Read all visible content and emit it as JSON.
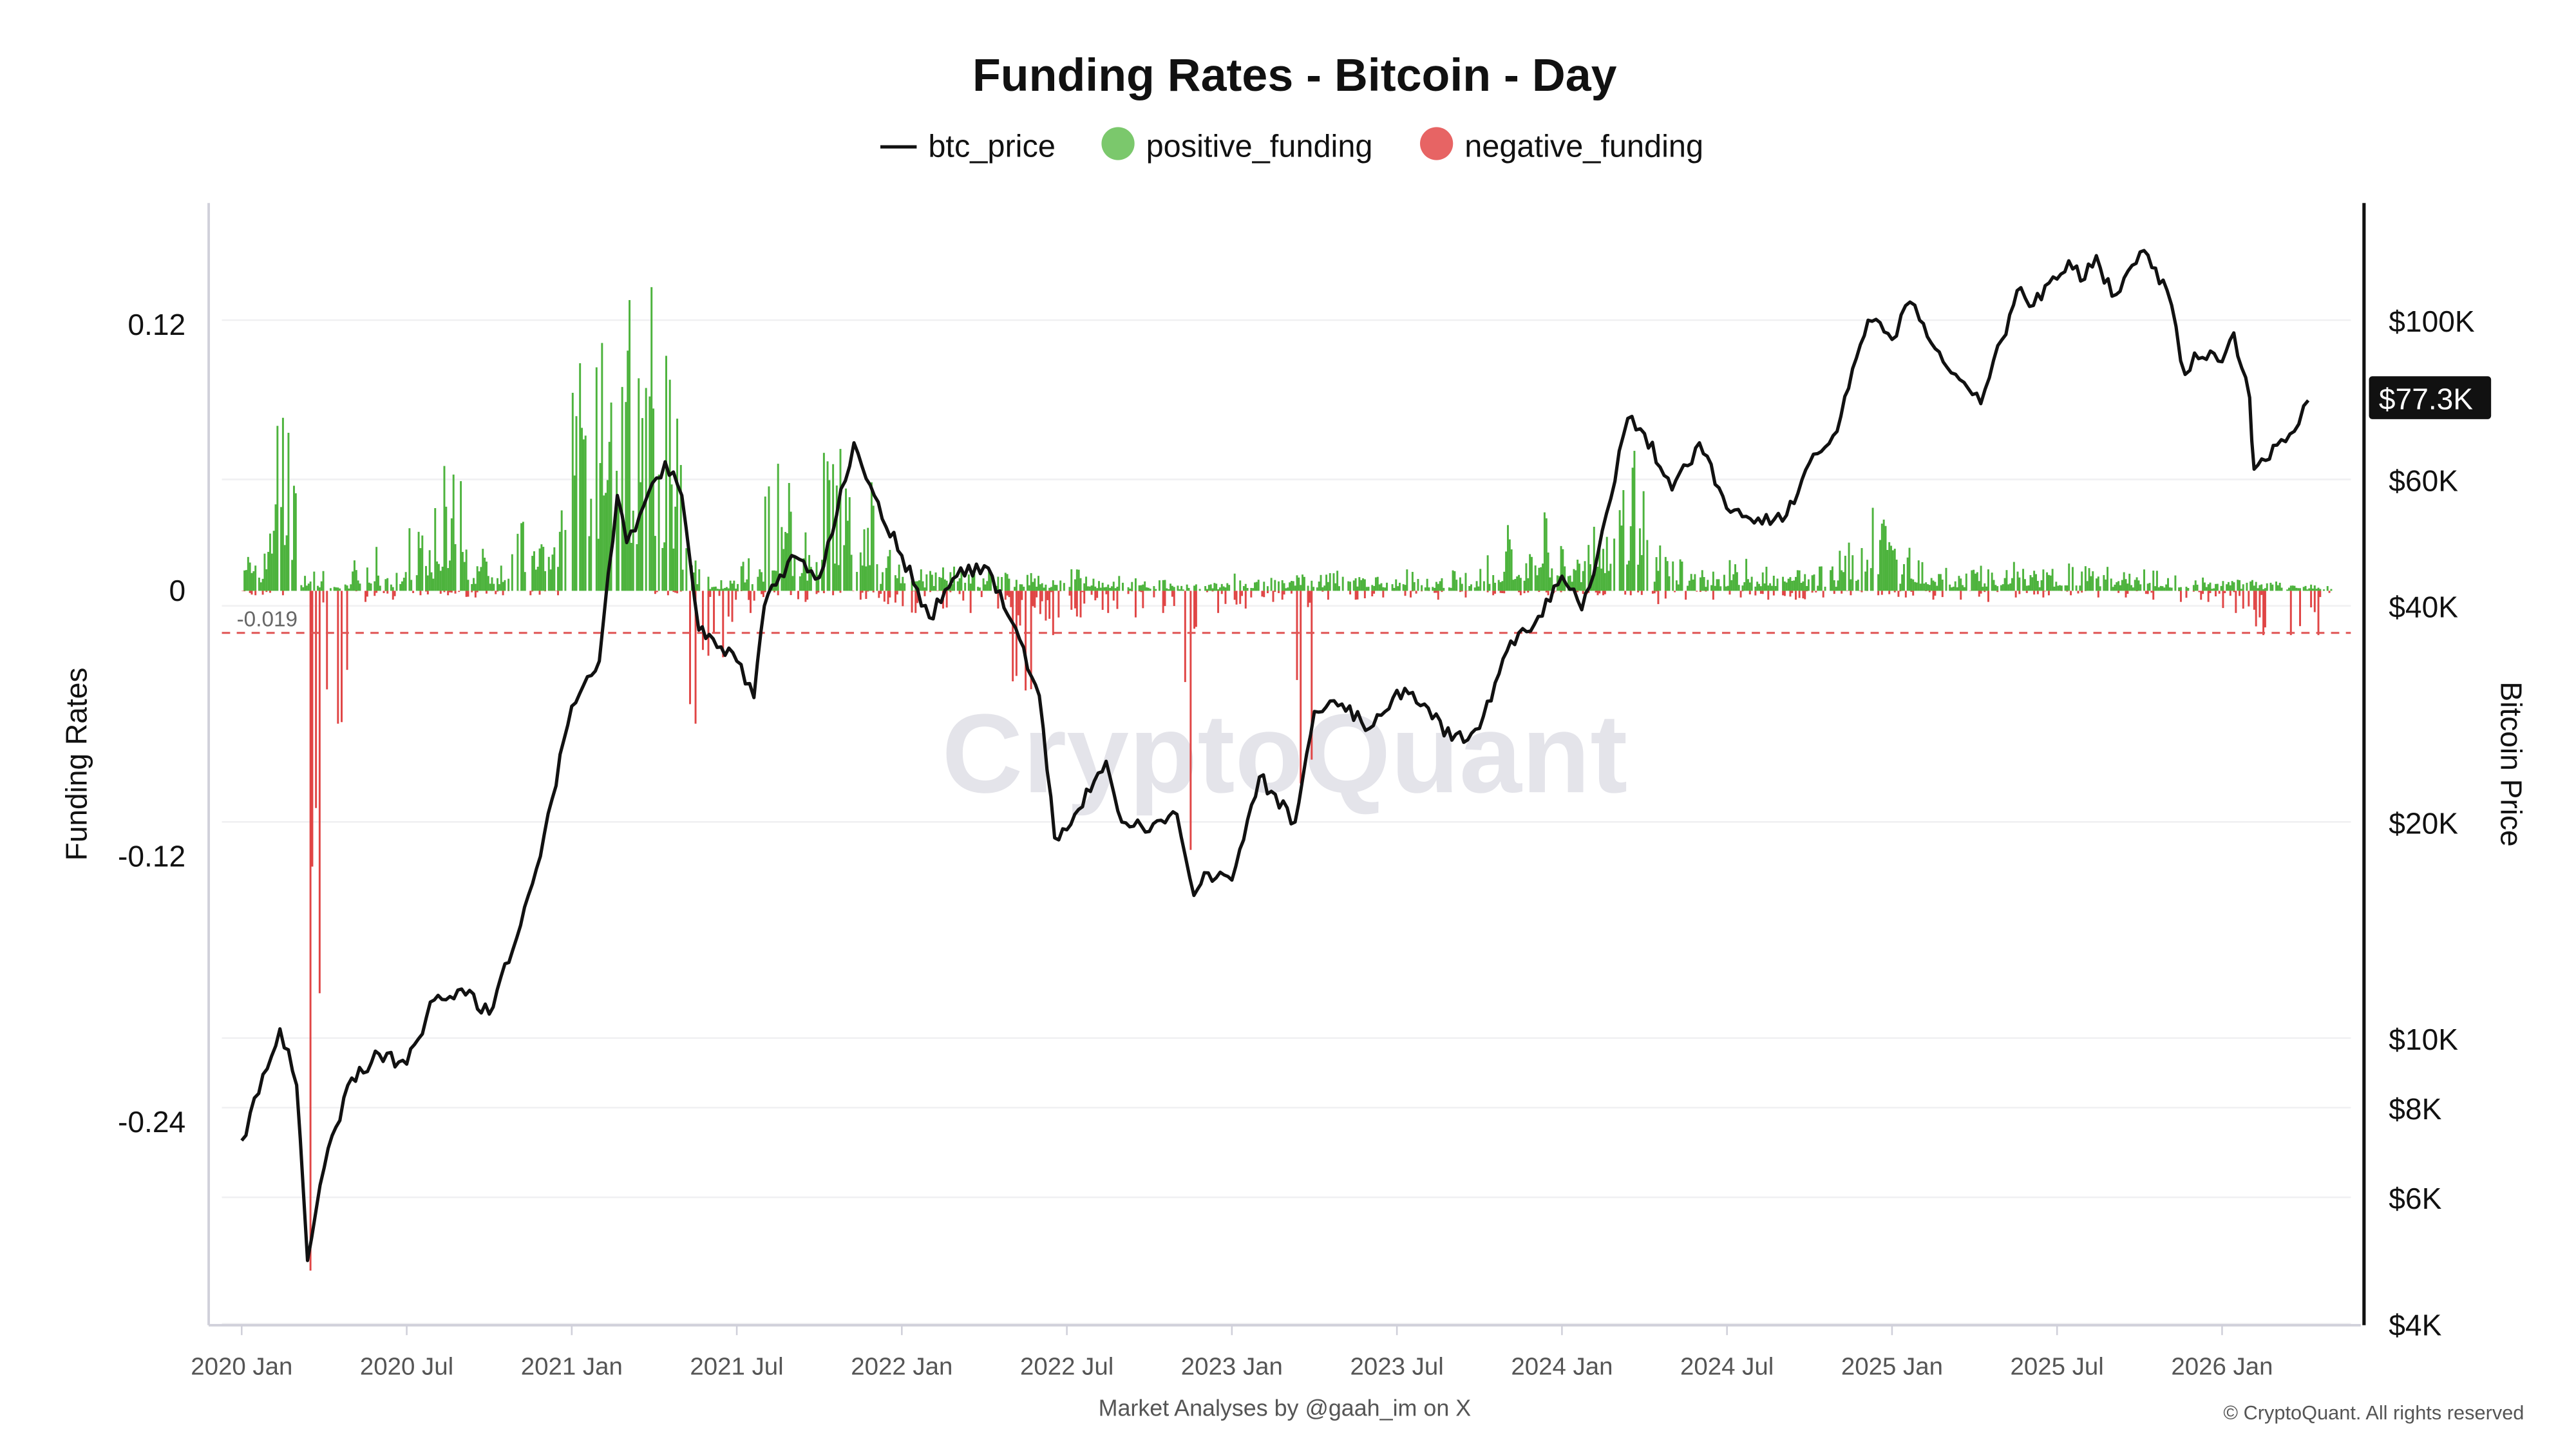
{
  "chart_data": {
    "type": "bar+line",
    "title": "Funding Rates - Bitcoin - Day",
    "legend": [
      "btc_price",
      "positive_funding",
      "negative_funding"
    ],
    "legend_placement": "top-center",
    "ylabel_left": "Funding Rates",
    "ylabel_right": "Bitcoin Price",
    "ylim_left": [
      -0.276,
      0.15
    ],
    "left_ticks": [
      {
        "v": 0.12,
        "label": "0.12"
      },
      {
        "v": 0,
        "label": "0"
      },
      {
        "v": -0.12,
        "label": "-0.12"
      },
      {
        "v": -0.24,
        "label": "-0.24"
      }
    ],
    "right_scale": "log",
    "right_ticks": [
      {
        "v": 100000,
        "label": "$100K"
      },
      {
        "v": 60000,
        "label": "$60K"
      },
      {
        "v": 40000,
        "label": "$40K"
      },
      {
        "v": 20000,
        "label": "$20K"
      },
      {
        "v": 10000,
        "label": "$10K"
      },
      {
        "v": 8000,
        "label": "$8K"
      },
      {
        "v": 6000,
        "label": "$6K"
      },
      {
        "v": 4000,
        "label": "$4K"
      }
    ],
    "x_ticks": [
      "2020 Jan",
      "2020 Jul",
      "2021 Jan",
      "2021 Jul",
      "2022 Jan",
      "2022 Jul",
      "2023 Jan",
      "2023 Jul",
      "2024 Jan",
      "2024 Jul",
      "2025 Jan",
      "2025 Jul",
      "2026 Jan"
    ],
    "threshold": {
      "value": -0.019,
      "label": "-0.019",
      "color": "#e05555"
    },
    "last_price_label": "$77.3K",
    "colors": {
      "btc_price": "#111111",
      "positive_funding": "#4db33d",
      "negative_funding": "#e04545"
    },
    "btc_price": [
      [
        "2020-01-01",
        7200
      ],
      [
        "2020-02-13",
        10300
      ],
      [
        "2020-03-01",
        8600
      ],
      [
        "2020-03-13",
        4900
      ],
      [
        "2020-04-01",
        6600
      ],
      [
        "2020-05-01",
        8800
      ],
      [
        "2020-06-01",
        9500
      ],
      [
        "2020-07-01",
        9200
      ],
      [
        "2020-08-01",
        11300
      ],
      [
        "2020-09-01",
        11700
      ],
      [
        "2020-10-01",
        10800
      ],
      [
        "2020-11-01",
        13800
      ],
      [
        "2020-12-01",
        19200
      ],
      [
        "2021-01-01",
        29000
      ],
      [
        "2021-02-01",
        33500
      ],
      [
        "2021-02-21",
        57000
      ],
      [
        "2021-03-01",
        49000
      ],
      [
        "2021-04-13",
        63500
      ],
      [
        "2021-05-01",
        57000
      ],
      [
        "2021-05-20",
        37000
      ],
      [
        "2021-06-01",
        36500
      ],
      [
        "2021-07-01",
        33500
      ],
      [
        "2021-07-20",
        29800
      ],
      [
        "2021-08-01",
        40000
      ],
      [
        "2021-09-01",
        47000
      ],
      [
        "2021-10-01",
        43800
      ],
      [
        "2021-11-09",
        67500
      ],
      [
        "2021-12-01",
        57000
      ],
      [
        "2022-01-01",
        47000
      ],
      [
        "2022-02-01",
        38500
      ],
      [
        "2022-03-01",
        44000
      ],
      [
        "2022-04-01",
        45500
      ],
      [
        "2022-05-01",
        38000
      ],
      [
        "2022-06-01",
        30000
      ],
      [
        "2022-06-18",
        19000
      ],
      [
        "2022-07-01",
        19500
      ],
      [
        "2022-08-14",
        24300
      ],
      [
        "2022-09-01",
        20000
      ],
      [
        "2022-10-01",
        19400
      ],
      [
        "2022-11-01",
        20500
      ],
      [
        "2022-11-20",
        15800
      ],
      [
        "2022-12-01",
        17000
      ],
      [
        "2023-01-01",
        16600
      ],
      [
        "2023-02-01",
        23100
      ],
      [
        "2023-03-10",
        20000
      ],
      [
        "2023-04-01",
        28500
      ],
      [
        "2023-05-01",
        29200
      ],
      [
        "2023-06-01",
        27000
      ],
      [
        "2023-07-01",
        30500
      ],
      [
        "2023-08-01",
        29200
      ],
      [
        "2023-09-01",
        26000
      ],
      [
        "2023-10-01",
        27000
      ],
      [
        "2023-11-01",
        34600
      ],
      [
        "2023-12-01",
        37700
      ],
      [
        "2024-01-01",
        44000
      ],
      [
        "2024-01-23",
        39500
      ],
      [
        "2024-02-01",
        42500
      ],
      [
        "2024-03-13",
        73000
      ],
      [
        "2024-04-01",
        69500
      ],
      [
        "2024-05-01",
        58000
      ],
      [
        "2024-06-01",
        67500
      ],
      [
        "2024-07-05",
        54000
      ],
      [
        "2024-08-05",
        53000
      ],
      [
        "2024-09-06",
        53500
      ],
      [
        "2024-10-01",
        63300
      ],
      [
        "2024-11-01",
        70000
      ],
      [
        "2024-12-05",
        100000
      ],
      [
        "2025-01-01",
        94000
      ],
      [
        "2025-01-21",
        106000
      ],
      [
        "2025-02-01",
        100000
      ],
      [
        "2025-03-01",
        86000
      ],
      [
        "2025-04-08",
        76500
      ],
      [
        "2025-05-01",
        94000
      ],
      [
        "2025-05-22",
        111000
      ],
      [
        "2025-06-01",
        104500
      ],
      [
        "2025-07-14",
        121000
      ],
      [
        "2025-08-01",
        114000
      ],
      [
        "2025-08-14",
        123000
      ],
      [
        "2025-09-01",
        108000
      ],
      [
        "2025-10-06",
        125000
      ],
      [
        "2025-11-01",
        110000
      ],
      [
        "2025-11-21",
        84000
      ],
      [
        "2025-12-01",
        90000
      ],
      [
        "2026-01-01",
        87500
      ],
      [
        "2026-01-14",
        96000
      ],
      [
        "2026-02-01",
        78000
      ],
      [
        "2026-02-06",
        62000
      ],
      [
        "2026-03-01",
        67000
      ],
      [
        "2026-03-20",
        70000
      ],
      [
        "2026-04-05",
        77300
      ]
    ],
    "funding_monthly_peaks": [
      [
        0.02,
        -0.002
      ],
      [
        0.085,
        -0.002
      ],
      [
        0.01,
        -0.307
      ],
      [
        0.005,
        -0.06
      ],
      [
        0.02,
        -0.005
      ],
      [
        0.01,
        -0.004
      ],
      [
        0.03,
        -0.002
      ],
      [
        0.06,
        -0.002
      ],
      [
        0.02,
        -0.003
      ],
      [
        0.02,
        -0.002
      ],
      [
        0.04,
        -0.002
      ],
      [
        0.05,
        -0.002
      ],
      [
        0.11,
        0
      ],
      [
        0.155,
        0
      ],
      [
        0.14,
        0
      ],
      [
        0.12,
        -0.002
      ],
      [
        0.02,
        -0.06
      ],
      [
        0.005,
        -0.03
      ],
      [
        0.02,
        -0.01
      ],
      [
        0.06,
        -0.002
      ],
      [
        0.03,
        -0.005
      ],
      [
        0.07,
        -0.002
      ],
      [
        0.05,
        -0.004
      ],
      [
        0.02,
        -0.006
      ],
      [
        0.01,
        -0.01
      ],
      [
        0.012,
        -0.008
      ],
      [
        0.01,
        -0.01
      ],
      [
        0.01,
        -0.008
      ],
      [
        0.008,
        -0.045
      ],
      [
        0.005,
        -0.02
      ],
      [
        0.01,
        -0.012
      ],
      [
        0.008,
        -0.01
      ],
      [
        0.006,
        -0.012
      ],
      [
        0.005,
        -0.01
      ],
      [
        0.003,
        -0.117
      ],
      [
        0.004,
        -0.01
      ],
      [
        0.008,
        -0.008
      ],
      [
        0.006,
        -0.005
      ],
      [
        0.008,
        -0.087
      ],
      [
        0.01,
        -0.004
      ],
      [
        0.008,
        -0.004
      ],
      [
        0.008,
        -0.003
      ],
      [
        0.01,
        -0.003
      ],
      [
        0.008,
        -0.004
      ],
      [
        0.01,
        -0.003
      ],
      [
        0.02,
        -0.002
      ],
      [
        0.03,
        -0.002
      ],
      [
        0.04,
        -0.002
      ],
      [
        0.025,
        -0.002
      ],
      [
        0.04,
        -0.002
      ],
      [
        0.075,
        -0.002
      ],
      [
        0.025,
        -0.006
      ],
      [
        0.015,
        -0.004
      ],
      [
        0.012,
        -0.004
      ],
      [
        0.015,
        -0.003
      ],
      [
        0.012,
        -0.004
      ],
      [
        0.01,
        -0.004
      ],
      [
        0.012,
        -0.003
      ],
      [
        0.03,
        -0.002
      ],
      [
        0.05,
        -0.002
      ],
      [
        0.02,
        -0.003
      ],
      [
        0.015,
        -0.004
      ],
      [
        0.01,
        -0.004
      ],
      [
        0.012,
        -0.005
      ],
      [
        0.015,
        -0.003
      ],
      [
        0.01,
        -0.003
      ],
      [
        0.015,
        -0.002
      ],
      [
        0.012,
        -0.003
      ],
      [
        0.01,
        -0.003
      ],
      [
        0.01,
        -0.004
      ],
      [
        0.008,
        -0.005
      ],
      [
        0.006,
        -0.005
      ],
      [
        0.006,
        -0.01
      ],
      [
        0.005,
        -0.02
      ],
      [
        0.004,
        -0.02
      ],
      [
        0.003,
        -0.02
      ]
    ]
  },
  "footer": {
    "credit": "Market Analyses by @gaah_im on X",
    "copyright": "© CryptoQuant. All rights reserved"
  },
  "watermark": "CryptoQuant"
}
